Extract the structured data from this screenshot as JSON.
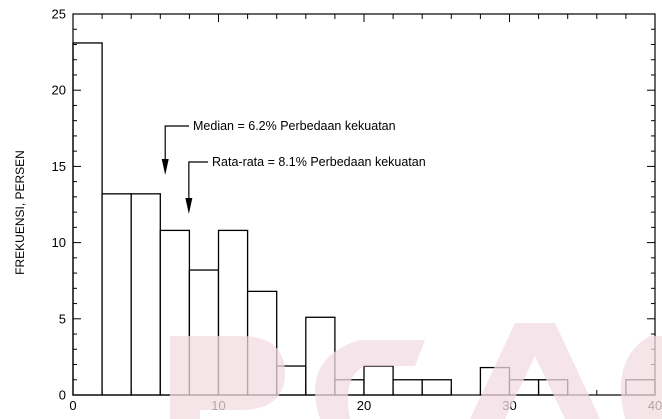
{
  "chart_data": {
    "type": "bar",
    "ylabel": "FREKUENSI, PERSEN",
    "xlabel": "",
    "xlim": [
      0,
      40
    ],
    "ylim": [
      0,
      25
    ],
    "bin_width": 2,
    "xticks": [
      0,
      10,
      20,
      30,
      40
    ],
    "yticks": [
      0,
      5,
      10,
      15,
      20,
      25
    ],
    "bins": [
      {
        "x0": 0,
        "x1": 2,
        "value": 23.1
      },
      {
        "x0": 2,
        "x1": 4,
        "value": 13.2
      },
      {
        "x0": 4,
        "x1": 6,
        "value": 13.2
      },
      {
        "x0": 6,
        "x1": 8,
        "value": 10.8
      },
      {
        "x0": 8,
        "x1": 10,
        "value": 8.2
      },
      {
        "x0": 10,
        "x1": 12,
        "value": 10.8
      },
      {
        "x0": 12,
        "x1": 14,
        "value": 6.8
      },
      {
        "x0": 14,
        "x1": 16,
        "value": 1.9
      },
      {
        "x0": 16,
        "x1": 18,
        "value": 5.1
      },
      {
        "x0": 18,
        "x1": 20,
        "value": 1.0
      },
      {
        "x0": 20,
        "x1": 22,
        "value": 1.9
      },
      {
        "x0": 22,
        "x1": 24,
        "value": 1.0
      },
      {
        "x0": 24,
        "x1": 26,
        "value": 1.0
      },
      {
        "x0": 26,
        "x1": 28,
        "value": 0
      },
      {
        "x0": 28,
        "x1": 30,
        "value": 1.8
      },
      {
        "x0": 30,
        "x1": 32,
        "value": 1.0
      },
      {
        "x0": 32,
        "x1": 34,
        "value": 1.0
      },
      {
        "x0": 34,
        "x1": 36,
        "value": 0
      },
      {
        "x0": 36,
        "x1": 38,
        "value": 0
      },
      {
        "x0": 38,
        "x1": 40,
        "value": 1.0
      }
    ],
    "annotations": [
      {
        "text": "Median = 6.2%  Perbedaan kekuatan",
        "x": 6.2
      },
      {
        "text": "Rata-rata = 8.1%  Perbedaan kekuatan",
        "x": 8.1
      }
    ],
    "grid": false,
    "colors": {
      "bar_fill": "#ffffff",
      "bar_stroke": "#000000",
      "watermark": "#f2dce2"
    }
  }
}
